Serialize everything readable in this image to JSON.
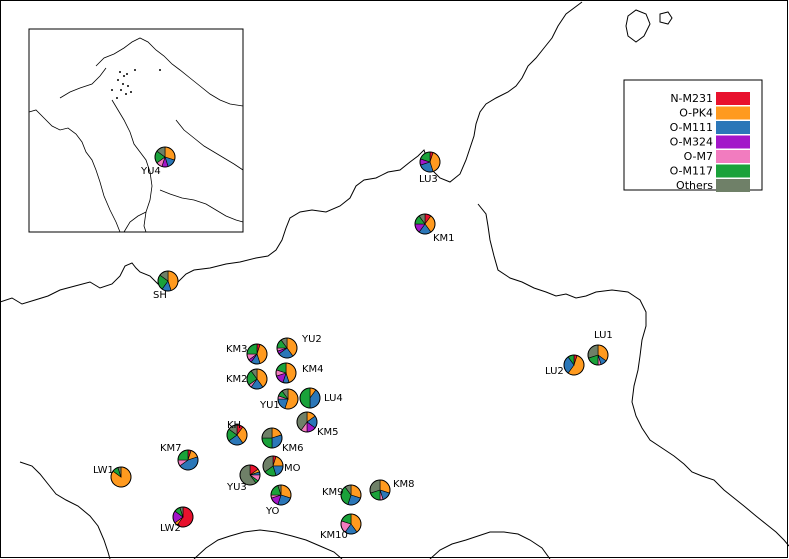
{
  "colors": {
    "N-M231": "#e8112d",
    "O-PK4": "#ff9a1f",
    "O-M111": "#2b77b8",
    "O-M324": "#a316c9",
    "O-M7": "#f27cbf",
    "O-M117": "#1aa23a",
    "Others": "#6f8068"
  },
  "legend": {
    "items": [
      "N-M231",
      "O-PK4",
      "O-M111",
      "O-M324",
      "O-M7",
      "O-M117",
      "Others"
    ]
  },
  "populations": [
    {
      "name": "YU4",
      "values": [
        0,
        30,
        15,
        10,
        10,
        20,
        15
      ]
    },
    {
      "name": "LU3",
      "values": [
        5,
        40,
        25,
        10,
        0,
        20,
        0
      ]
    },
    {
      "name": "KM1",
      "values": [
        10,
        30,
        20,
        15,
        0,
        15,
        10
      ]
    },
    {
      "name": "SH",
      "values": [
        0,
        45,
        15,
        0,
        0,
        25,
        15
      ]
    },
    {
      "name": "LU1",
      "values": [
        0,
        35,
        10,
        0,
        5,
        20,
        30
      ]
    },
    {
      "name": "LU2",
      "values": [
        5,
        55,
        30,
        0,
        0,
        10,
        0
      ]
    },
    {
      "name": "KM3",
      "values": [
        5,
        40,
        15,
        5,
        10,
        25,
        0
      ]
    },
    {
      "name": "YU2",
      "values": [
        0,
        40,
        25,
        5,
        5,
        15,
        10
      ]
    },
    {
      "name": "KM2",
      "values": [
        0,
        40,
        20,
        0,
        5,
        25,
        10
      ]
    },
    {
      "name": "KM4",
      "values": [
        0,
        45,
        10,
        15,
        10,
        20,
        0
      ]
    },
    {
      "name": "YU1",
      "values": [
        0,
        55,
        20,
        0,
        5,
        10,
        10
      ]
    },
    {
      "name": "LU4",
      "values": [
        0,
        10,
        40,
        0,
        0,
        50,
        0
      ]
    },
    {
      "name": "KM5",
      "values": [
        0,
        15,
        20,
        15,
        10,
        0,
        40
      ]
    },
    {
      "name": "KH",
      "values": [
        10,
        30,
        25,
        0,
        0,
        20,
        15
      ]
    },
    {
      "name": "KM6",
      "values": [
        0,
        20,
        30,
        0,
        0,
        25,
        25
      ]
    },
    {
      "name": "KM7",
      "values": [
        5,
        15,
        45,
        0,
        10,
        25,
        0
      ]
    },
    {
      "name": "LW1",
      "values": [
        0,
        85,
        0,
        0,
        0,
        10,
        5
      ]
    },
    {
      "name": "MO",
      "values": [
        5,
        20,
        20,
        0,
        0,
        20,
        35
      ]
    },
    {
      "name": "YU3",
      "values": [
        15,
        5,
        5,
        0,
        10,
        5,
        60
      ]
    },
    {
      "name": "YO",
      "values": [
        0,
        30,
        25,
        15,
        5,
        20,
        5
      ]
    },
    {
      "name": "KM9",
      "values": [
        0,
        30,
        25,
        0,
        0,
        35,
        10
      ]
    },
    {
      "name": "KM8",
      "values": [
        0,
        30,
        15,
        0,
        5,
        20,
        30
      ]
    },
    {
      "name": "LW2",
      "values": [
        60,
        5,
        0,
        20,
        0,
        10,
        5
      ]
    },
    {
      "name": "KM10",
      "values": [
        0,
        40,
        20,
        0,
        20,
        20,
        0
      ]
    }
  ]
}
